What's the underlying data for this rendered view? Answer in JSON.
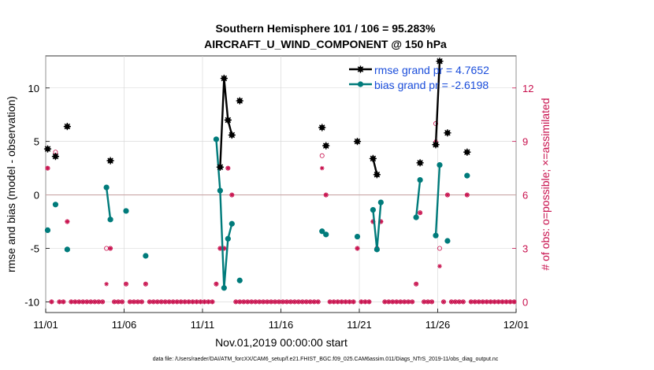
{
  "chart_data": {
    "type": "line",
    "title": "Southern Hemisphere 101 / 106 = 95.283%",
    "subtitle": "AIRCRAFT_U_WIND_COMPONENT @ 150 hPa",
    "xlabel": "Nov.01,2019 00:00:00 start",
    "ylabel": "rmse and bias (model - observation)",
    "y2label": "# of obs: o=possible; ×=assimilated",
    "xlim": [
      0,
      30
    ],
    "ylim": [
      -11,
      13
    ],
    "y2lim": [
      -0.6,
      13.8
    ],
    "x_ticks": [
      {
        "x": 0,
        "label": "11/01"
      },
      {
        "x": 5,
        "label": "11/06"
      },
      {
        "x": 10,
        "label": "11/11"
      },
      {
        "x": 15,
        "label": "11/16"
      },
      {
        "x": 20,
        "label": "11/21"
      },
      {
        "x": 25,
        "label": "11/26"
      },
      {
        "x": 30,
        "label": "12/01"
      }
    ],
    "y_ticks": [
      -10,
      -5,
      0,
      5,
      10
    ],
    "y2_ticks": [
      0,
      3,
      6,
      9,
      12
    ],
    "zero_line": 0,
    "rmse": {
      "name": "rmse",
      "legend": "rmse grand pr = 4.7652",
      "color": "#000000",
      "segments": [
        [
          [
            0.125,
            4.3
          ]
        ],
        [
          [
            0.625,
            3.6
          ]
        ],
        [
          [
            1.375,
            6.4
          ]
        ],
        [
          [
            4.125,
            3.2
          ]
        ],
        [
          [
            11.125,
            2.6
          ],
          [
            11.375,
            10.9
          ],
          [
            11.625,
            7.0
          ],
          [
            11.875,
            5.6
          ]
        ],
        [
          [
            12.375,
            8.8
          ]
        ],
        [
          [
            17.625,
            6.3
          ]
        ],
        [
          [
            17.875,
            4.6
          ]
        ],
        [
          [
            19.875,
            5.0
          ]
        ],
        [
          [
            20.875,
            3.4
          ],
          [
            21.125,
            1.9
          ]
        ],
        [
          [
            23.875,
            3.0
          ]
        ],
        [
          [
            24.875,
            4.7
          ],
          [
            25.125,
            12.5
          ]
        ],
        [
          [
            25.625,
            5.8
          ]
        ],
        [
          [
            26.875,
            4.0
          ]
        ]
      ]
    },
    "bias": {
      "name": "bias",
      "legend": "bias grand pr = -2.6198",
      "color": "#007b7b",
      "segments": [
        [
          [
            0.125,
            -3.3
          ]
        ],
        [
          [
            0.625,
            -0.9
          ]
        ],
        [
          [
            1.375,
            -5.1
          ]
        ],
        [
          [
            3.875,
            0.7
          ],
          [
            4.125,
            -2.3
          ]
        ],
        [
          [
            5.125,
            -1.5
          ]
        ],
        [
          [
            6.375,
            -5.7
          ]
        ],
        [
          [
            10.875,
            5.2
          ],
          [
            11.125,
            0.4
          ],
          [
            11.375,
            -8.7
          ],
          [
            11.625,
            -4.1
          ],
          [
            11.875,
            -2.7
          ]
        ],
        [
          [
            12.375,
            -8.0
          ]
        ],
        [
          [
            17.625,
            -3.4
          ]
        ],
        [
          [
            17.875,
            -3.7
          ]
        ],
        [
          [
            19.875,
            -3.9
          ]
        ],
        [
          [
            20.875,
            -1.4
          ],
          [
            21.125,
            -5.1
          ],
          [
            21.375,
            -0.7
          ]
        ],
        [
          [
            23.625,
            -2.1
          ],
          [
            23.875,
            1.4
          ]
        ],
        [
          [
            24.875,
            -3.8
          ],
          [
            25.125,
            2.8
          ]
        ],
        [
          [
            25.625,
            -4.3
          ]
        ],
        [
          [
            26.875,
            1.8
          ]
        ]
      ]
    },
    "obs_possible": [
      [
        0.125,
        7.5
      ],
      [
        0.625,
        8.4
      ],
      [
        1.375,
        4.5
      ],
      [
        3.875,
        3.0
      ],
      [
        4.125,
        3.0
      ],
      [
        5.125,
        1.0
      ],
      [
        6.375,
        1.0
      ],
      [
        10.875,
        1.0
      ],
      [
        11.125,
        3.0
      ],
      [
        11.375,
        3.0
      ],
      [
        11.625,
        7.5
      ],
      [
        11.875,
        6.0
      ],
      [
        17.625,
        8.2
      ],
      [
        17.875,
        6.0
      ],
      [
        19.875,
        3.0
      ],
      [
        20.875,
        4.5
      ],
      [
        21.125,
        3.0
      ],
      [
        21.375,
        4.5
      ],
      [
        23.625,
        1.0
      ],
      [
        23.875,
        5.0
      ],
      [
        24.875,
        10.0
      ],
      [
        25.125,
        3.0
      ],
      [
        25.625,
        6.0
      ],
      [
        26.875,
        6.0
      ]
    ],
    "obs_assimilated": [
      [
        0.125,
        7.5
      ],
      [
        0.625,
        8.2
      ],
      [
        1.375,
        4.5
      ],
      [
        3.875,
        1.0
      ],
      [
        4.125,
        3.0
      ],
      [
        5.125,
        1.0
      ],
      [
        6.375,
        1.0
      ],
      [
        10.875,
        1.0
      ],
      [
        11.125,
        3.0
      ],
      [
        11.375,
        3.0
      ],
      [
        11.625,
        7.5
      ],
      [
        11.875,
        6.0
      ],
      [
        17.625,
        7.5
      ],
      [
        17.875,
        6.0
      ],
      [
        19.875,
        3.0
      ],
      [
        20.875,
        4.5
      ],
      [
        21.125,
        3.0
      ],
      [
        21.375,
        4.5
      ],
      [
        23.625,
        1.0
      ],
      [
        23.875,
        5.0
      ],
      [
        24.875,
        9.0
      ],
      [
        25.125,
        2.0
      ],
      [
        25.625,
        6.0
      ],
      [
        26.875,
        6.0
      ]
    ],
    "zero_obs_step": 0.25,
    "footer": "data file: /Users/raeder/DAI/ATM_forcXX/CAM6_setup/f.e21.FHIST_BGC.f09_025.CAM6assim.011/Diags_NTrS_2019-11/obs_diag_output.nc"
  }
}
